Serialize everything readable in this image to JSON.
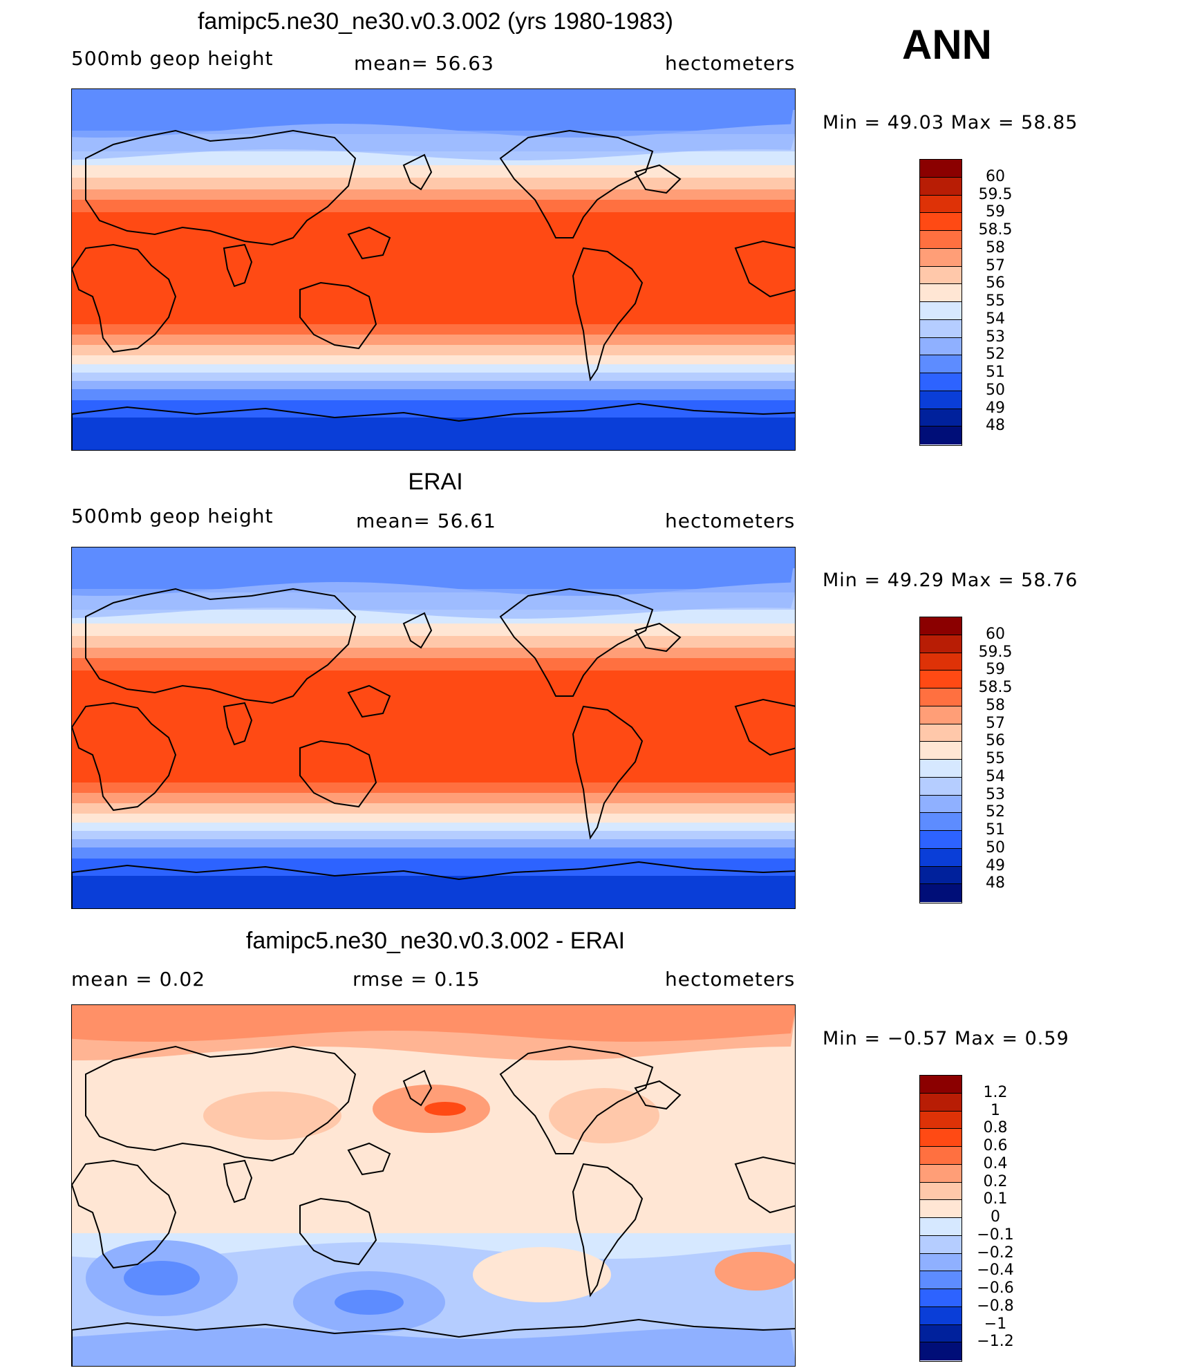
{
  "season": "ANN",
  "panels": [
    {
      "title": "famipc5.ne30_ne30.v0.3.002 (yrs 1980-1983)",
      "left": "500mb  geop  height",
      "center": "mean=   56.63",
      "right": "hectometers",
      "minmax": "Min  =    49.03  Max  =    58.85",
      "kind": "field",
      "levels": [
        "60",
        "59.5",
        "59",
        "58.5",
        "58",
        "57",
        "56",
        "55",
        "54",
        "53",
        "52",
        "51",
        "50",
        "49",
        "48"
      ],
      "colors": [
        "#8b0000",
        "#b81d05",
        "#de3207",
        "#ff4a14",
        "#ff7040",
        "#ff9e77",
        "#ffc8aa",
        "#ffe6d4",
        "#d6e8ff",
        "#b5cdff",
        "#8fb0ff",
        "#5d8cff",
        "#2d63ff",
        "#0a3ed8",
        "#00219c",
        "#000e78"
      ]
    },
    {
      "title": "ERAI",
      "left": "500mb  geop  height",
      "center": "mean=   56.61",
      "right": "hectometers",
      "minmax": "Min  =    49.29  Max  =    58.76",
      "kind": "field",
      "levels": [
        "60",
        "59.5",
        "59",
        "58.5",
        "58",
        "57",
        "56",
        "55",
        "54",
        "53",
        "52",
        "51",
        "50",
        "49",
        "48"
      ],
      "colors": [
        "#8b0000",
        "#b81d05",
        "#de3207",
        "#ff4a14",
        "#ff7040",
        "#ff9e77",
        "#ffc8aa",
        "#ffe6d4",
        "#d6e8ff",
        "#b5cdff",
        "#8fb0ff",
        "#5d8cff",
        "#2d63ff",
        "#0a3ed8",
        "#00219c",
        "#000e78"
      ]
    },
    {
      "title": "famipc5.ne30_ne30.v0.3.002 - ERAI",
      "left": "mean  =      0.02",
      "center": "rmse  =      0.15",
      "right": "hectometers",
      "minmax": "Min  =    −0.57  Max  =       0.59",
      "kind": "diff",
      "levels": [
        "1.2",
        "1",
        "0.8",
        "0.6",
        "0.4",
        "0.2",
        "0.1",
        "0",
        "−0.1",
        "−0.2",
        "−0.4",
        "−0.6",
        "−0.8",
        "−1",
        "−1.2"
      ],
      "colors": [
        "#8b0000",
        "#b81d05",
        "#de3207",
        "#ff4a14",
        "#ff7040",
        "#ff9e77",
        "#ffc8aa",
        "#ffe6d4",
        "#d6e8ff",
        "#b5cdff",
        "#8fb0ff",
        "#5d8cff",
        "#2d63ff",
        "#0a3ed8",
        "#00219c",
        "#000e78"
      ]
    }
  ]
}
